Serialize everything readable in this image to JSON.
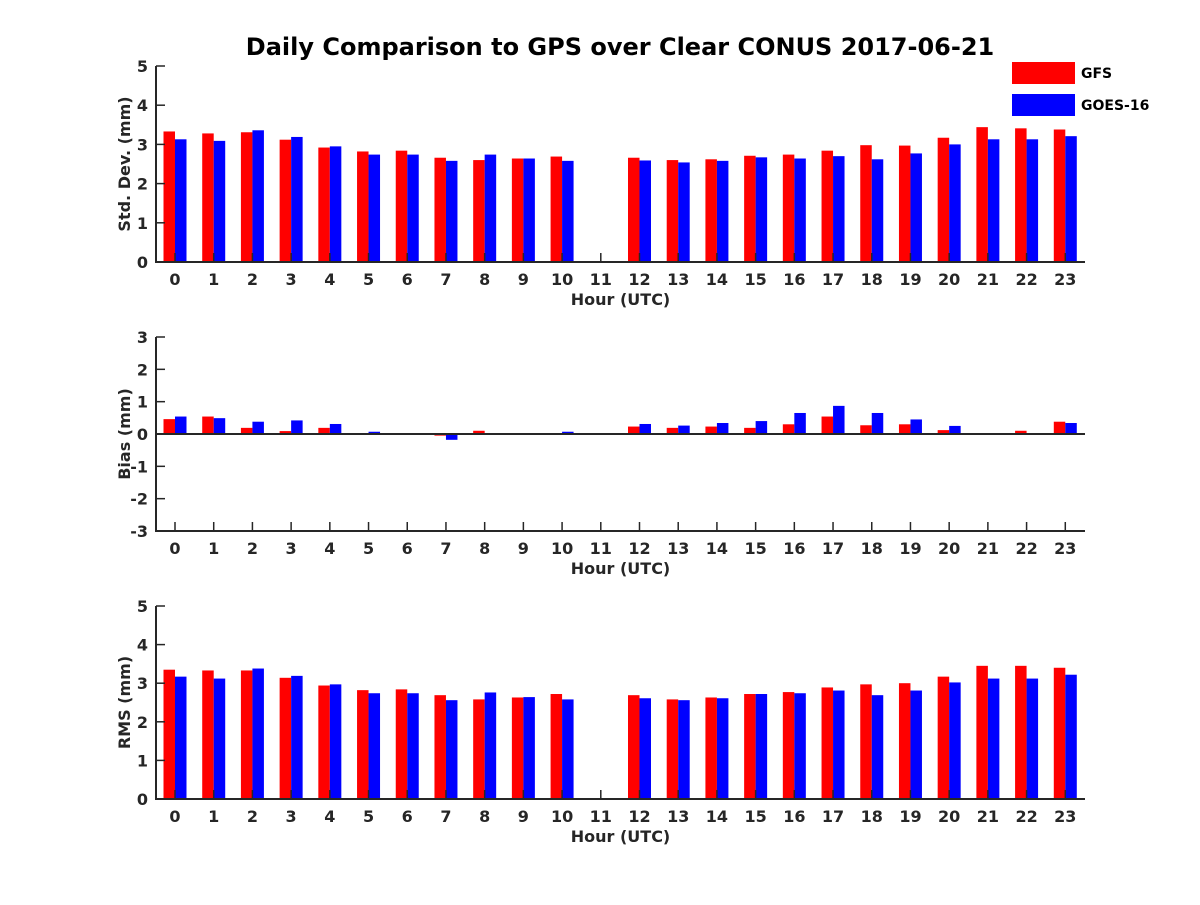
{
  "chart_data": {
    "type": "bar",
    "title": "Daily Comparison to GPS over Clear CONUS 2017-06-21",
    "colors": {
      "GFS": "#ff0000",
      "GOES-16": "#0000ff",
      "axis": "#262626"
    },
    "legend": {
      "position": "top-right",
      "entries": [
        "GFS",
        "GOES-16"
      ]
    },
    "categories": [
      "0",
      "1",
      "2",
      "3",
      "4",
      "5",
      "6",
      "7",
      "8",
      "9",
      "10",
      "11",
      "12",
      "13",
      "14",
      "15",
      "16",
      "17",
      "18",
      "19",
      "20",
      "21",
      "22",
      "23"
    ],
    "panels": [
      {
        "ylabel": "Std. Dev. (mm)",
        "xlabel": "Hour (UTC)",
        "ylim": [
          0,
          5
        ],
        "yticks": [
          "0",
          "1",
          "2",
          "3",
          "4",
          "5"
        ],
        "series": [
          {
            "name": "GFS",
            "values": [
              3.33,
              3.28,
              3.31,
              3.12,
              2.92,
              2.82,
              2.84,
              2.66,
              2.6,
              2.64,
              2.69,
              null,
              2.66,
              2.6,
              2.62,
              2.71,
              2.74,
              2.84,
              2.98,
              2.97,
              3.17,
              3.44,
              3.41,
              3.38
            ]
          },
          {
            "name": "GOES-16",
            "values": [
              3.13,
              3.09,
              3.36,
              3.19,
              2.95,
              2.74,
              2.74,
              2.58,
              2.74,
              2.64,
              2.58,
              null,
              2.59,
              2.54,
              2.58,
              2.67,
              2.64,
              2.7,
              2.62,
              2.77,
              3.0,
              3.13,
              3.13,
              3.21
            ]
          }
        ]
      },
      {
        "ylabel": "Bias (mm)",
        "xlabel": "Hour (UTC)",
        "ylim": [
          -3,
          3
        ],
        "yticks": [
          "-3",
          "-2",
          "-1",
          "0",
          "1",
          "2",
          "3"
        ],
        "series": [
          {
            "name": "GFS",
            "values": [
              0.46,
              0.54,
              0.19,
              0.09,
              0.19,
              0.03,
              0.0,
              -0.05,
              0.1,
              0.0,
              -0.02,
              null,
              0.23,
              0.19,
              0.23,
              0.19,
              0.3,
              0.54,
              0.27,
              0.3,
              0.12,
              0.03,
              0.1,
              0.38
            ]
          },
          {
            "name": "GOES-16",
            "values": [
              0.54,
              0.49,
              0.38,
              0.42,
              0.31,
              0.07,
              0.0,
              -0.18,
              0.03,
              -0.03,
              0.07,
              null,
              0.31,
              0.26,
              0.34,
              0.4,
              0.65,
              0.87,
              0.65,
              0.45,
              0.25,
              0.0,
              0.0,
              0.34
            ]
          }
        ]
      },
      {
        "ylabel": "RMS (mm)",
        "xlabel": "Hour (UTC)",
        "ylim": [
          0,
          5
        ],
        "yticks": [
          "0",
          "1",
          "2",
          "3",
          "4",
          "5"
        ],
        "series": [
          {
            "name": "GFS",
            "values": [
              3.35,
              3.33,
              3.33,
              3.14,
              2.94,
              2.82,
              2.84,
              2.69,
              2.58,
              2.63,
              2.72,
              null,
              2.69,
              2.58,
              2.63,
              2.72,
              2.77,
              2.89,
              2.97,
              3.0,
              3.17,
              3.45,
              3.45,
              3.4
            ]
          },
          {
            "name": "GOES-16",
            "values": [
              3.17,
              3.12,
              3.38,
              3.19,
              2.97,
              2.74,
              2.74,
              2.56,
              2.76,
              2.64,
              2.58,
              null,
              2.61,
              2.56,
              2.61,
              2.72,
              2.74,
              2.81,
              2.69,
              2.81,
              3.02,
              3.12,
              3.12,
              3.22
            ]
          }
        ]
      }
    ]
  }
}
